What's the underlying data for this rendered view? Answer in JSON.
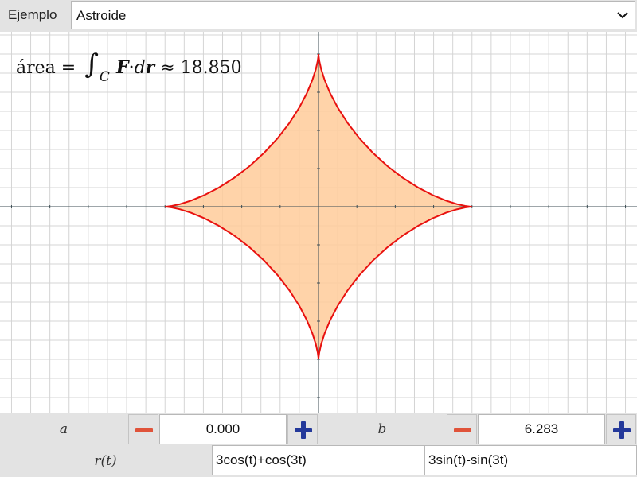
{
  "header": {
    "label": "Ejemplo",
    "selected_example": "Astroide"
  },
  "plot": {
    "area_readout": {
      "prefix": "área = ",
      "integral_symbol": "∫",
      "curve_subscript": "C",
      "field": "F",
      "dot": "·",
      "d": "d",
      "r": "r",
      "approx": " ≈ ",
      "value": "18.850"
    },
    "curve": {
      "x_expr": "3cos(t)+cos(3t)",
      "y_expr": "3sin(t)-sin(3t)",
      "t_min": 0,
      "t_max": 6.283
    },
    "x_range": [
      -8.3,
      8.3
    ],
    "y_range": [
      -5.0,
      5.0
    ],
    "grid": true,
    "colors": {
      "curve": "#e8110f",
      "fill": "#ffcb9a",
      "grid": "#d4d4d4",
      "axis": "#3d4e55"
    }
  },
  "controls": {
    "a": {
      "label": "a",
      "value": "0.000"
    },
    "b": {
      "label": "b",
      "value": "6.283"
    },
    "r": {
      "label": "r(t)",
      "x_expr": "3cos(t)+cos(3t)",
      "y_expr": "3sin(t)-sin(3t)"
    },
    "minus_icon_color": "#e0533a",
    "plus_icon_color": "#24399a"
  }
}
